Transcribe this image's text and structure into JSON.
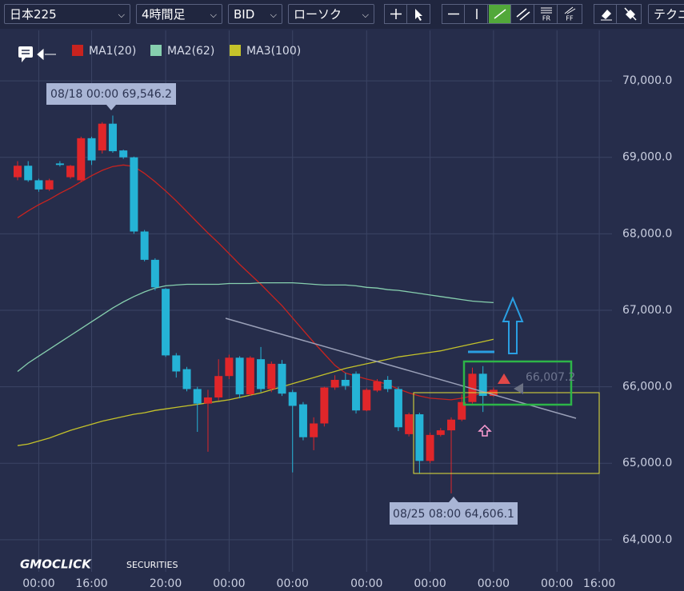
{
  "toolbar": {
    "symbol": "日本225",
    "timeframe": "4時間足",
    "price_side": "BID",
    "chart_style": "ローソク",
    "icon_labels": [
      "FR",
      "FF"
    ],
    "technical": "テクニカル"
  },
  "logo": {
    "brand": "GMOCLICK",
    "sub": "SECURITIES"
  },
  "chart_data": {
    "type": "candlestick",
    "categories": [
      null,
      null,
      "00:00",
      null,
      null,
      null,
      null,
      "16:00",
      null,
      null,
      null,
      null,
      null,
      null,
      "20:00",
      null,
      null,
      null,
      null,
      null,
      "00:00",
      null,
      null,
      null,
      null,
      null,
      "00:00",
      null,
      null,
      null,
      null,
      null,
      null,
      "00:00",
      null,
      null,
      null,
      null,
      null,
      "00:00",
      null,
      null,
      null,
      null,
      null,
      "00:00",
      null,
      null,
      null,
      null,
      null,
      "00:00",
      null,
      null,
      null,
      "16:00"
    ],
    "open": [
      68740,
      68890,
      68700,
      68580,
      68920,
      68740,
      68700,
      69250,
      69090,
      69440,
      69090,
      69000,
      68030,
      67660,
      67280,
      66410,
      66230,
      65970,
      65780,
      65860,
      66140,
      66380,
      65900,
      66360,
      65970,
      66300,
      65930,
      65770,
      65340,
      65520,
      65990,
      66090,
      66170,
      65690,
      65950,
      66090,
      65970,
      65380,
      65640,
      65030,
      65370,
      65430,
      65570,
      65800,
      66170,
      65880,
      null,
      null,
      null,
      null,
      null,
      null,
      null,
      null,
      null,
      null
    ],
    "high": [
      68950,
      68950,
      68720,
      68720,
      68950,
      68900,
      69270,
      69270,
      69460,
      69546.2,
      69100,
      69010,
      68050,
      67680,
      67290,
      66440,
      66260,
      66000,
      65960,
      66360,
      66420,
      66400,
      66400,
      66520,
      66330,
      66350,
      65960,
      65800,
      65600,
      66000,
      66150,
      66180,
      66200,
      65980,
      66100,
      66140,
      66000,
      65660,
      65660,
      65400,
      65460,
      65600,
      65900,
      66250,
      66270,
      65990,
      null,
      null,
      null,
      null,
      null,
      null,
      null,
      null,
      null,
      null
    ],
    "low": [
      68700,
      68680,
      68550,
      68560,
      68880,
      68720,
      68680,
      68900,
      69050,
      69060,
      68980,
      68000,
      67640,
      67260,
      66390,
      66120,
      65940,
      65410,
      65150,
      65820,
      66100,
      65850,
      65880,
      65930,
      65930,
      65880,
      64880,
      65300,
      65170,
      65480,
      65960,
      65960,
      65650,
      65680,
      65930,
      65930,
      65420,
      65350,
      64870,
      65000,
      65350,
      64606.1,
      65550,
      65780,
      65670,
      65870,
      null,
      null,
      null,
      null,
      null,
      null,
      null,
      null,
      null,
      null
    ],
    "close": [
      68890,
      68700,
      68580,
      68700,
      68900,
      68890,
      69250,
      68960,
      69440,
      69080,
      69000,
      68030,
      67660,
      67300,
      66410,
      66200,
      65970,
      65780,
      65860,
      66140,
      66380,
      65900,
      66380,
      65970,
      66300,
      65910,
      65750,
      65340,
      65520,
      65990,
      66090,
      66010,
      65690,
      65960,
      66070,
      65970,
      65470,
      65640,
      65030,
      65370,
      65430,
      65570,
      65800,
      66170,
      65880,
      65960,
      null,
      null,
      null,
      null,
      null,
      null,
      null,
      null,
      null,
      null
    ],
    "up_color": "#e0262a",
    "down_color": "#25b3d6",
    "series": [
      {
        "name": "MA1(20)",
        "color": "#c8231f",
        "values": [
          68210,
          68300,
          68380,
          68450,
          68530,
          68600,
          68680,
          68760,
          68830,
          68880,
          68900,
          68880,
          68790,
          68680,
          68560,
          68430,
          68290,
          68150,
          68010,
          67880,
          67740,
          67600,
          67470,
          67340,
          67200,
          67060,
          66900,
          66740,
          66580,
          66430,
          66280,
          66180,
          66140,
          66100,
          66070,
          66030,
          65970,
          65920,
          65880,
          65850,
          65840,
          65830,
          65850,
          65880,
          65920,
          65950,
          null,
          null,
          null,
          null,
          null,
          null,
          null,
          null,
          null,
          null
        ]
      },
      {
        "name": "MA2(62)",
        "color": "#86cfae",
        "values": [
          66200,
          66310,
          66400,
          66490,
          66580,
          66670,
          66760,
          66850,
          66940,
          67030,
          67110,
          67180,
          67240,
          67290,
          67320,
          67330,
          67340,
          67340,
          67340,
          67340,
          67350,
          67350,
          67350,
          67360,
          67360,
          67360,
          67360,
          67350,
          67340,
          67330,
          67330,
          67330,
          67320,
          67300,
          67290,
          67270,
          67260,
          67240,
          67220,
          67200,
          67180,
          67160,
          67140,
          67120,
          67110,
          67100,
          null,
          null,
          null,
          null,
          null,
          null,
          null,
          null,
          null,
          null
        ]
      },
      {
        "name": "MA3(100)",
        "color": "#c4c22a",
        "values": [
          65230,
          65250,
          65290,
          65330,
          65380,
          65430,
          65470,
          65510,
          65550,
          65580,
          65610,
          65640,
          65660,
          65690,
          65710,
          65730,
          65750,
          65770,
          65790,
          65810,
          65830,
          65860,
          65890,
          65920,
          65960,
          66000,
          66040,
          66080,
          66120,
          66160,
          66200,
          66240,
          66270,
          66300,
          66330,
          66360,
          66390,
          66410,
          66430,
          66450,
          66470,
          66500,
          66530,
          66560,
          66590,
          66620,
          null,
          null,
          null,
          null,
          null,
          null,
          null,
          null,
          null,
          null
        ]
      }
    ],
    "ylim": [
      63580,
      70660
    ],
    "yticks": [
      {
        "value": 64000,
        "label": "64,000.0"
      },
      {
        "value": 65000,
        "label": "65,000.0"
      },
      {
        "value": 66000,
        "label": "66,000.0"
      },
      {
        "value": 67000,
        "label": "67,000.0"
      },
      {
        "value": 68000,
        "label": "68,000.0"
      },
      {
        "value": 69000,
        "label": "69,000.0"
      },
      {
        "value": 70000,
        "label": "70,000.0"
      }
    ],
    "grid": true,
    "annotations": [
      "08/18 00:00 69,546.2",
      "08/25 08:00 64,606.1",
      "66,007.2"
    ]
  }
}
